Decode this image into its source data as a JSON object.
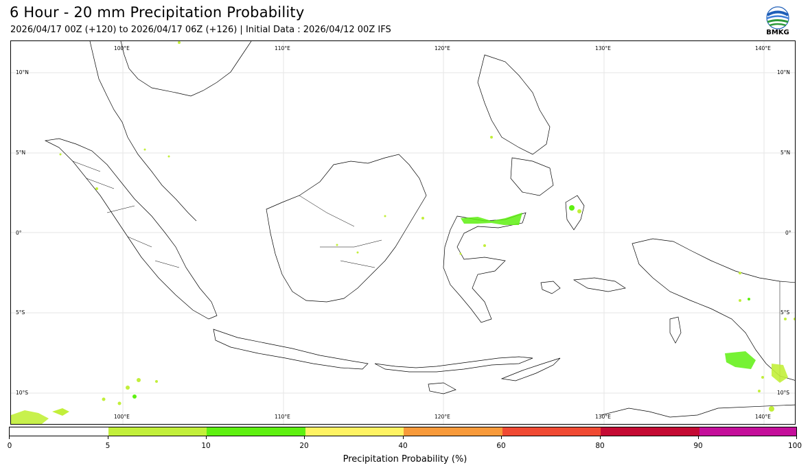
{
  "header": {
    "title": "6 Hour - 20 mm Precipitation Probability",
    "subtitle": "2026/04/17 00Z (+120) to 2026/04/17 06Z (+126) | Initial Data : 2026/04/12 00Z IFS",
    "logo_text": "BMKG"
  },
  "map": {
    "lon_labels": [
      "100°E",
      "110°E",
      "120°E",
      "130°E",
      "140°E"
    ],
    "lat_labels": [
      "10°N",
      "5°N",
      "0°",
      "5°S",
      "10°S"
    ]
  },
  "colorbar": {
    "label": "Precipitation Probability (%)",
    "ticks": [
      "0",
      "5",
      "10",
      "20",
      "40",
      "60",
      "80",
      "90",
      "100"
    ],
    "colors": [
      "#ffffff",
      "#c2ef3a",
      "#5ef010",
      "#fff363",
      "#f89a3a",
      "#f04a33",
      "#c40a33",
      "#c40e9a"
    ]
  }
}
